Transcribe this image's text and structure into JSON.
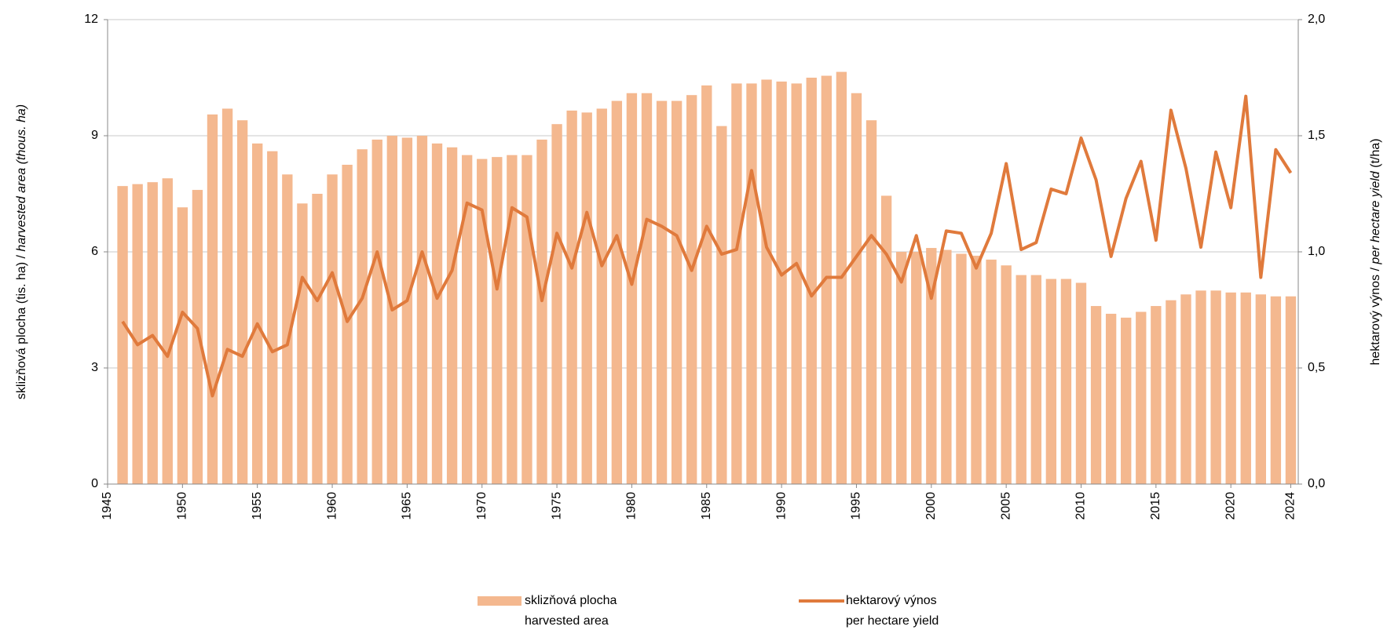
{
  "chart_data": {
    "type": "bar-line",
    "x": [
      1946,
      1947,
      1948,
      1949,
      1950,
      1951,
      1952,
      1953,
      1954,
      1955,
      1956,
      1957,
      1958,
      1959,
      1960,
      1961,
      1962,
      1963,
      1964,
      1965,
      1966,
      1967,
      1968,
      1969,
      1970,
      1971,
      1972,
      1973,
      1974,
      1975,
      1976,
      1977,
      1978,
      1979,
      1980,
      1981,
      1982,
      1983,
      1984,
      1985,
      1986,
      1987,
      1988,
      1989,
      1990,
      1991,
      1992,
      1993,
      1994,
      1995,
      1996,
      1997,
      1998,
      1999,
      2000,
      2001,
      2002,
      2003,
      2004,
      2005,
      2006,
      2007,
      2008,
      2009,
      2010,
      2011,
      2012,
      2013,
      2014,
      2015,
      2016,
      2017,
      2018,
      2019,
      2020,
      2021,
      2022,
      2023,
      2024
    ],
    "xlim": [
      1945,
      2024.5
    ],
    "xticks": [
      1945,
      1950,
      1955,
      1960,
      1965,
      1970,
      1975,
      1980,
      1985,
      1990,
      1995,
      2000,
      2005,
      2010,
      2015,
      2020,
      2024
    ],
    "ylim": [
      0,
      12
    ],
    "yticks": [
      0,
      3,
      6,
      9,
      12
    ],
    "y2lim": [
      0,
      2
    ],
    "y2ticks": [
      {
        "value": 0,
        "label": "0,0"
      },
      {
        "value": 0.5,
        "label": "0,5"
      },
      {
        "value": 1,
        "label": "1,0"
      },
      {
        "value": 1.5,
        "label": "1,5"
      },
      {
        "value": 2,
        "label": "2,0"
      }
    ],
    "ylabel": [
      "sklizňová plocha (tis. ha) / ",
      "harvested area (thous. ha)"
    ],
    "y2label": [
      "hektarový výnos / ",
      "per hectare yield",
      " (t/ha)"
    ],
    "grid": true,
    "series": [
      {
        "name": [
          "sklizňová plocha",
          "harvested area"
        ],
        "type": "bar",
        "color": "#f4b88f",
        "values": [
          7.7,
          7.75,
          7.8,
          7.9,
          7.15,
          7.6,
          9.55,
          9.7,
          9.4,
          8.8,
          8.6,
          8.0,
          7.25,
          7.5,
          8.0,
          8.25,
          8.65,
          8.9,
          9.0,
          8.95,
          9.0,
          8.8,
          8.7,
          8.5,
          8.4,
          8.45,
          8.5,
          8.5,
          8.9,
          9.3,
          9.65,
          9.6,
          9.7,
          9.9,
          10.1,
          10.1,
          9.9,
          9.9,
          10.05,
          10.3,
          9.25,
          10.35,
          10.35,
          10.45,
          10.4,
          10.35,
          10.5,
          10.55,
          10.65,
          10.1,
          9.4,
          7.45,
          6.0,
          6.0,
          6.1,
          6.05,
          5.95,
          5.9,
          5.8,
          5.65,
          5.4,
          5.4,
          5.3,
          5.3,
          5.2,
          4.6,
          4.4,
          4.3,
          4.45,
          4.6,
          4.75,
          4.9,
          5.0,
          5.0,
          4.95,
          4.95,
          4.9,
          4.85,
          4.85
        ]
      },
      {
        "name": [
          "hektarový výnos",
          "per hectare yield"
        ],
        "type": "line",
        "axis": "y2",
        "color": "#e07a3c",
        "values": [
          0.7,
          0.6,
          0.64,
          0.55,
          0.74,
          0.67,
          0.38,
          0.58,
          0.55,
          0.69,
          0.57,
          0.6,
          0.89,
          0.79,
          0.91,
          0.7,
          0.8,
          1.0,
          0.75,
          0.79,
          1.0,
          0.8,
          0.92,
          1.21,
          1.18,
          0.84,
          1.19,
          1.15,
          0.79,
          1.08,
          0.93,
          1.17,
          0.94,
          1.07,
          0.86,
          1.14,
          1.11,
          1.07,
          0.92,
          1.11,
          0.99,
          1.01,
          1.35,
          1.02,
          0.9,
          0.95,
          0.81,
          0.89,
          0.89,
          0.98,
          1.07,
          0.99,
          0.87,
          1.07,
          0.8,
          1.09,
          1.08,
          0.93,
          1.08,
          1.38,
          1.01,
          1.04,
          1.27,
          1.25,
          1.49,
          1.31,
          0.98,
          1.23,
          1.39,
          1.05,
          1.61,
          1.36,
          1.02,
          1.43,
          1.19,
          1.67,
          0.89,
          1.44,
          1.34
        ]
      }
    ]
  }
}
